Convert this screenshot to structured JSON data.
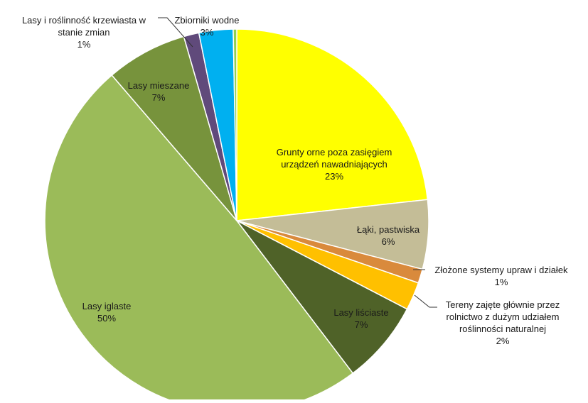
{
  "chart_data": {
    "type": "pie",
    "title": "",
    "start_angle_deg": 0,
    "direction": "clockwise",
    "slices": [
      {
        "label_lines": [
          "Grunty orne poza zasięgiem",
          "urządzeń nawadniających",
          "23%"
        ],
        "value": 23.5,
        "color": "#ffff00"
      },
      {
        "label_lines": [
          "Łąki, pastwiska",
          "6%"
        ],
        "value": 5.9,
        "color": "#c4bd97"
      },
      {
        "label_lines": [
          "Złożone systemy upraw i działek",
          "1%"
        ],
        "value": 1.2,
        "color": "#d98a3c"
      },
      {
        "label_lines": [
          "Tereny zajęte głównie przez",
          "rolnictwo z dużym udziałem",
          "roślinności naturalnej",
          "2%"
        ],
        "value": 2.4,
        "color": "#ffc000"
      },
      {
        "label_lines": [
          "Lasy liściaste",
          "7%"
        ],
        "value": 7.1,
        "color": "#4f6228"
      },
      {
        "label_lines": [
          "Lasy iglaste",
          "50%"
        ],
        "value": 49.6,
        "color": "#9bbb59"
      },
      {
        "label_lines": [
          "Lasy mieszane",
          "7%"
        ],
        "value": 6.9,
        "color": "#77933c"
      },
      {
        "label_lines": [
          "Lasy i roślinność krzewiasta w",
          "stanie zmian",
          "1%"
        ],
        "value": 1.3,
        "color": "#604a7b"
      },
      {
        "label_lines": [
          "Zbiorniki wodne",
          "3%"
        ],
        "value": 2.9,
        "color": "#00b0f0"
      },
      {
        "label_lines": [],
        "value": 0.3,
        "color": "#92d050"
      }
    ]
  }
}
